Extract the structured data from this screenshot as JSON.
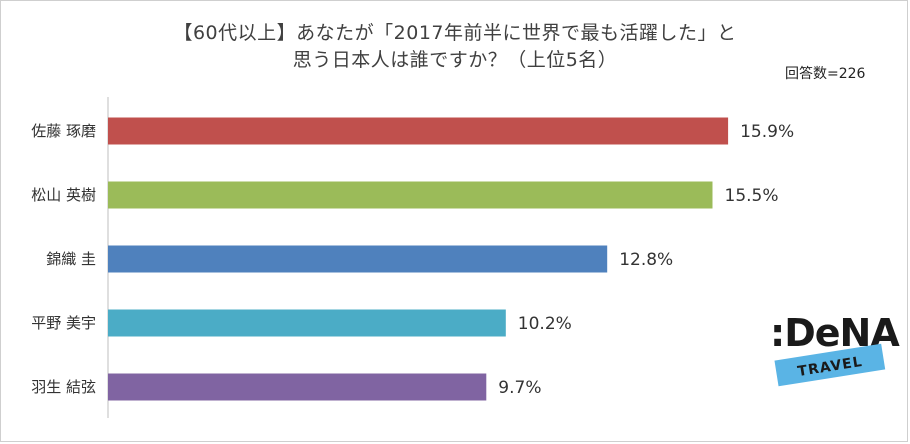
{
  "header": {
    "title_line1": "【60代以上】あなたが「2017年前半に世界で最も活躍した」と",
    "title_line2": "思う日本人は誰ですか？（上位5名）",
    "respondents": "回答数=226"
  },
  "chart_data": {
    "type": "bar",
    "orientation": "horizontal",
    "title": "【60代以上】あなたが「2017年前半に世界で最も活躍した」と思う日本人は誰ですか？（上位5名）",
    "categories": [
      "佐藤 琢磨",
      "松山 英樹",
      "錦織 圭",
      "平野 美宇",
      "羽生 結弦"
    ],
    "values": [
      15.9,
      15.5,
      12.8,
      10.2,
      9.7
    ],
    "value_labels": [
      "15.9%",
      "15.5%",
      "12.8%",
      "10.2%",
      "9.7%"
    ],
    "colors": [
      "#c0504d",
      "#9bbb59",
      "#4f81bd",
      "#4bacc6",
      "#8064a2"
    ],
    "xlim": [
      0,
      20
    ],
    "grid": false,
    "legend": "none"
  },
  "logo": {
    "brand": ":DeNA",
    "sub": "TRAVEL",
    "brand_color": "#1a1a1a",
    "sub_color": "#5ab4e5"
  }
}
